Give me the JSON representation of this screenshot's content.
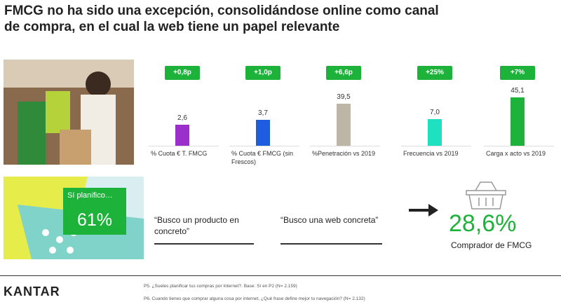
{
  "title": "FMCG no ha sido una excepción, consolidándose online como canal de compra, en el cual la web tiene un papel relevante",
  "chart_data": [
    {
      "type": "bar",
      "annotation": "+0,8p",
      "categories": [
        "% Cuota € T. FMCG"
      ],
      "values": [
        2.6
      ],
      "value_labels": [
        "2,6"
      ],
      "color": "#9b2fc9",
      "ylim": [
        0,
        6
      ]
    },
    {
      "type": "bar",
      "annotation": "+1,0p",
      "categories": [
        "% Cuota € FMCG (sin Frescos)"
      ],
      "values": [
        3.7
      ],
      "value_labels": [
        "3,7"
      ],
      "color": "#1f5de0",
      "ylim": [
        0,
        7
      ]
    },
    {
      "type": "bar",
      "annotation": "+6,6p",
      "categories": [
        "%Penetración vs 2019"
      ],
      "values": [
        39.5
      ],
      "value_labels": [
        "39,5"
      ],
      "color": "#bdb5a6",
      "ylim": [
        0,
        46
      ]
    },
    {
      "type": "bar",
      "annotation": "+25%",
      "categories": [
        "Frecuencia vs 2019"
      ],
      "values": [
        7.0
      ],
      "value_labels": [
        "7,0"
      ],
      "color": "#1fe0c0",
      "ylim": [
        0,
        13
      ]
    },
    {
      "type": "bar",
      "annotation": "+7%",
      "categories": [
        "Carga x acto vs 2019"
      ],
      "values": [
        45.1
      ],
      "value_labels": [
        "45,1"
      ],
      "color": "#1db33a",
      "ylim": [
        0,
        46
      ]
    }
  ],
  "planning": {
    "label": "Sí planifico…",
    "value": "61%"
  },
  "quotes": [
    "“Busco un producto en concreto”",
    "“Busco una web concreta”"
  ],
  "buyer": {
    "value": "28,6%",
    "label": "Comprador de FMCG"
  },
  "brand": "KANTAR",
  "footnotes": [
    "P5. ¿Sueles planificar tus compras por Internet?. Base: Sí en P2 (N= 2.159)",
    "P6. Cuando tienes que comprar alguna cosa por internet, ¿Qué frase define mejor tu navegación? (N= 2.132)"
  ]
}
